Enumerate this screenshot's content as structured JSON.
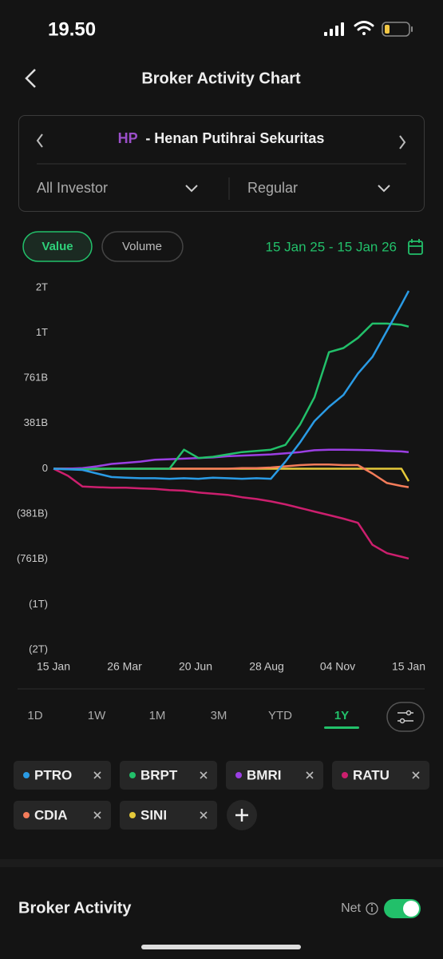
{
  "status_bar": {
    "time": "19.50"
  },
  "header": {
    "title": "Broker Activity Chart"
  },
  "broker": {
    "code": "HP",
    "name": "- Henan Putihrai Sekuritas"
  },
  "filters": {
    "investor": "All Investor",
    "market": "Regular"
  },
  "tabs": {
    "value": "Value",
    "volume": "Volume",
    "date_range": "15 Jan 25 - 15 Jan 26"
  },
  "chart_data": {
    "type": "line",
    "x": [
      0,
      10,
      20,
      30,
      40,
      50,
      60,
      70,
      80,
      90,
      100,
      110,
      120,
      130,
      140,
      150,
      160,
      170,
      180,
      190,
      200,
      210,
      220,
      230,
      240,
      245
    ],
    "xlim": [
      0,
      245
    ],
    "xticks": [
      {
        "value": 0,
        "label": "15 Jan"
      },
      {
        "value": 49,
        "label": "26 Mar"
      },
      {
        "value": 98,
        "label": "20 Jun"
      },
      {
        "value": 147,
        "label": "28 Aug"
      },
      {
        "value": 196,
        "label": "04 Nov"
      },
      {
        "value": 245,
        "label": "15 Jan"
      }
    ],
    "ylim": [
      -1522,
      1522
    ],
    "yticks": [
      {
        "value": 1522,
        "label": "2T"
      },
      {
        "value": 1142,
        "label": "1T"
      },
      {
        "value": 761,
        "label": "761B"
      },
      {
        "value": 381,
        "label": "381B"
      },
      0,
      {
        "value": -381,
        "label": "(381B)"
      },
      {
        "value": -761,
        "label": "(761B)"
      },
      {
        "value": -1142,
        "label": "(1T)"
      },
      {
        "value": -1522,
        "label": "(2T)"
      }
    ],
    "grid": false,
    "series": [
      {
        "name": "PTRO",
        "color": "#2a9be5",
        "values": [
          0,
          -5,
          -10,
          -40,
          -70,
          -75,
          -80,
          -80,
          -85,
          -80,
          -85,
          -75,
          -80,
          -85,
          -80,
          -85,
          60,
          220,
          400,
          520,
          620,
          800,
          940,
          1160,
          1380,
          1495
        ]
      },
      {
        "name": "BRPT",
        "color": "#22c06a",
        "values": [
          0,
          -5,
          -5,
          0,
          0,
          0,
          0,
          0,
          0,
          160,
          90,
          100,
          120,
          140,
          150,
          160,
          200,
          370,
          600,
          980,
          1015,
          1100,
          1220,
          1220,
          1210,
          1195
        ]
      },
      {
        "name": "BMRI",
        "color": "#9b3fe3",
        "values": [
          0,
          0,
          5,
          20,
          40,
          50,
          60,
          75,
          80,
          85,
          90,
          95,
          105,
          110,
          115,
          120,
          130,
          140,
          155,
          160,
          160,
          158,
          155,
          150,
          145,
          140
        ]
      },
      {
        "name": "RATU",
        "color": "#cc1f6e",
        "values": [
          0,
          -60,
          -150,
          -155,
          -160,
          -160,
          -165,
          -170,
          -180,
          -185,
          -200,
          -210,
          -220,
          -240,
          -255,
          -275,
          -300,
          -330,
          -360,
          -390,
          -420,
          -455,
          -640,
          -710,
          -740,
          -755
        ]
      },
      {
        "name": "CDIA",
        "color": "#f47c5a",
        "values": [
          0,
          0,
          -5,
          -5,
          0,
          0,
          0,
          0,
          0,
          0,
          0,
          0,
          0,
          5,
          5,
          10,
          20,
          30,
          35,
          35,
          30,
          30,
          -40,
          -120,
          -145,
          -155
        ]
      },
      {
        "name": "SINI",
        "color": "#e5c93a",
        "values": [
          0,
          0,
          0,
          0,
          0,
          0,
          0,
          0,
          0,
          0,
          0,
          0,
          0,
          0,
          0,
          0,
          0,
          0,
          0,
          0,
          0,
          0,
          0,
          0,
          0,
          -105
        ]
      }
    ]
  },
  "periods": [
    "1D",
    "1W",
    "1M",
    "3M",
    "YTD",
    "1Y"
  ],
  "section": {
    "title": "Broker Activity",
    "toggle_label": "Net"
  }
}
